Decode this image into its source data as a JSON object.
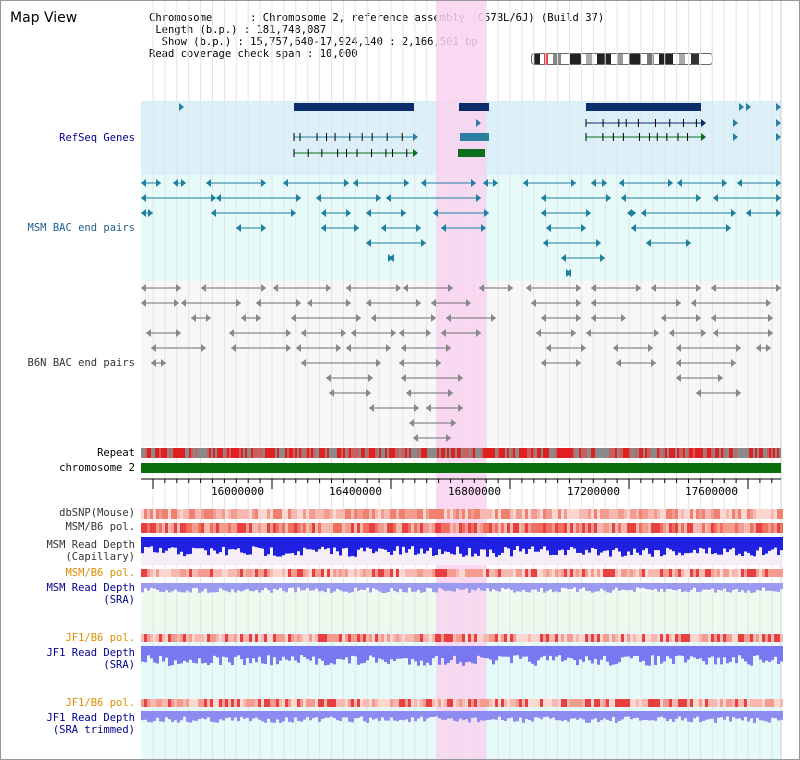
{
  "title": "Map View",
  "info": {
    "chromosome_key": "Chromosome",
    "chromosome_val": "Chromosome 2, reference assembly (C57BL/6J) (Build 37)",
    "length_key": "Length (b.p.)",
    "length_val": "181,748,087",
    "show_key": "Show (b.p.)",
    "show_val": "15,757,640-17,924,140 : 2,166,501 bp",
    "coverage_key": "Read coverage check span",
    "coverage_val": "10,000"
  },
  "tracks": {
    "refseq": "RefSeq Genes",
    "msm_bac": "MSM BAC end pairs",
    "b6n_bac": "B6N BAC end pairs",
    "repeat": "Repeat",
    "chromosome": "chromosome 2",
    "dbsnp": "dbSNP(Mouse)",
    "msm_b6_pol": "MSM/B6 pol.",
    "msm_depth_cap_1": "MSM Read Depth",
    "msm_depth_cap_2": "(Capillary)",
    "msm_b6_pol_2": "MSM/B6 pol.",
    "msm_depth_sra_1": "MSM Read Depth",
    "msm_depth_sra_2": "(SRA)",
    "jf1_pol": "JF1/B6 pol.",
    "jf1_depth_sra_1": "JF1 Read Depth",
    "jf1_depth_sra_2": "(SRA)",
    "jf1_pol_2": "JF1/B6 pol.",
    "jf1_depth_trim_1": "JF1 Read Depth",
    "jf1_depth_trim_2": "(SRA trimmed)"
  },
  "axis": {
    "ticks": [
      "16000000",
      "16400000",
      "16800000",
      "17200000",
      "17600000"
    ]
  },
  "colors": {
    "refseq_bg": "#dcf0fa",
    "msm_bg": "#e6fafa",
    "highlight": "#f8d4f0",
    "gene_dark": "#0b2d6b",
    "gene_teal": "#2a7f9f",
    "gene_green": "#0a6e1e",
    "msm_line": "#1f7f9f",
    "b6n_line": "#6e6e6e",
    "repeat_red": "#e02020",
    "chromosome_green": "#0a6e0a",
    "depth_blue": "#2020e0",
    "depth_light": "#7878f0",
    "label_blue": "#00008b",
    "label_orange": "#e08c00"
  }
}
